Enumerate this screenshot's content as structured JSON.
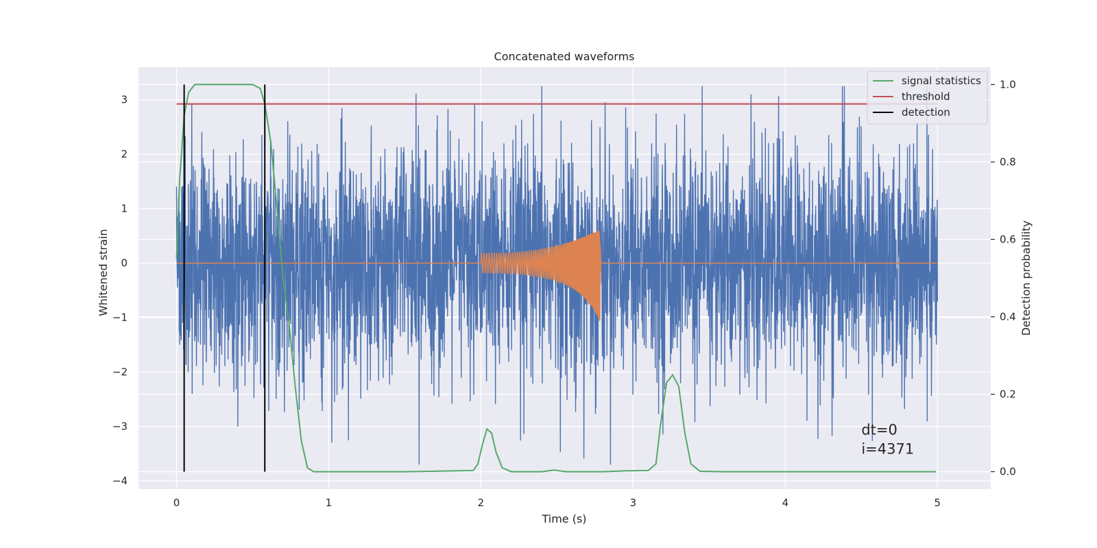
{
  "chart_data": {
    "type": "line",
    "title": "Concatenated waveforms",
    "xlabel": "Time (s)",
    "ylabel_left": "Whitened strain",
    "ylabel_right": "Detection probability",
    "xlim": [
      -0.25,
      5.35
    ],
    "ylim_left": [
      -4.15,
      3.6
    ],
    "ylim_right": [
      -0.045,
      1.045
    ],
    "x_ticks": [
      0,
      1,
      2,
      3,
      4,
      5
    ],
    "x_tick_labels": [
      "0",
      "1",
      "2",
      "3",
      "4",
      "5"
    ],
    "y_left_ticks": [
      -4,
      -3,
      -2,
      -1,
      0,
      1,
      2,
      3
    ],
    "y_left_tick_labels": [
      "−4",
      "−3",
      "−2",
      "−1",
      "0",
      "1",
      "2",
      "3"
    ],
    "y_right_ticks": [
      0.0,
      0.2,
      0.4,
      0.6,
      0.8,
      1.0
    ],
    "y_right_tick_labels": [
      "0.0",
      "0.2",
      "0.4",
      "0.6",
      "0.8",
      "1.0"
    ],
    "grid": true,
    "legend_placement": "top-right",
    "background": "#eaeaf2",
    "series": [
      {
        "name": "",
        "axis": "left",
        "color": "#4c72b0",
        "kind": "noise",
        "x_range": [
          0,
          5
        ],
        "typical_amplitude": 1.1,
        "peak_max": 3.25,
        "peak_min": -3.7
      },
      {
        "name": "",
        "axis": "left",
        "color": "#dd8452",
        "kind": "chirp",
        "baseline": 0,
        "x_range": [
          0,
          5
        ],
        "chirp_start": 2.0,
        "chirp_end": 2.78,
        "amplitude_start": 0.18,
        "amplitude_end": 0.62,
        "amplitude_min_end": -1.05
      },
      {
        "name": "signal statistics",
        "axis": "right",
        "color": "#55a868",
        "x": [
          0.0,
          0.02,
          0.05,
          0.08,
          0.12,
          0.2,
          0.4,
          0.5,
          0.55,
          0.58,
          0.62,
          0.66,
          0.7,
          0.74,
          0.78,
          0.82,
          0.86,
          0.9,
          1.5,
          1.95,
          1.98,
          2.01,
          2.04,
          2.07,
          2.1,
          2.14,
          2.2,
          2.4,
          2.48,
          2.56,
          2.8,
          2.95,
          3.1,
          3.15,
          3.18,
          3.22,
          3.26,
          3.3,
          3.34,
          3.38,
          3.44,
          3.6,
          4.0,
          4.99
        ],
        "y": [
          0.55,
          0.75,
          0.92,
          0.98,
          1.0,
          1.0,
          1.0,
          1.0,
          0.99,
          0.95,
          0.85,
          0.68,
          0.5,
          0.38,
          0.22,
          0.08,
          0.01,
          0.0,
          0.0,
          0.003,
          0.02,
          0.07,
          0.11,
          0.1,
          0.05,
          0.01,
          0.0,
          0.0,
          0.004,
          0.0,
          0.0,
          0.002,
          0.003,
          0.02,
          0.12,
          0.23,
          0.25,
          0.22,
          0.1,
          0.02,
          0.001,
          0.0,
          0.0,
          0.0
        ]
      },
      {
        "name": "threshold",
        "axis": "right",
        "color": "#c44e52",
        "x": [
          0,
          5
        ],
        "y": [
          0.95,
          0.95
        ]
      },
      {
        "name": "detection",
        "axis": "right",
        "color": "#000000",
        "kind": "vlines",
        "x": [
          0.05,
          0.58
        ],
        "ymin": 0.0,
        "ymax": 1.0
      }
    ],
    "annotations": [
      {
        "text": "dt=0",
        "x": 4.5,
        "y": -3.15
      },
      {
        "text": "i=4371",
        "x": 4.5,
        "y": -3.5
      }
    ]
  }
}
